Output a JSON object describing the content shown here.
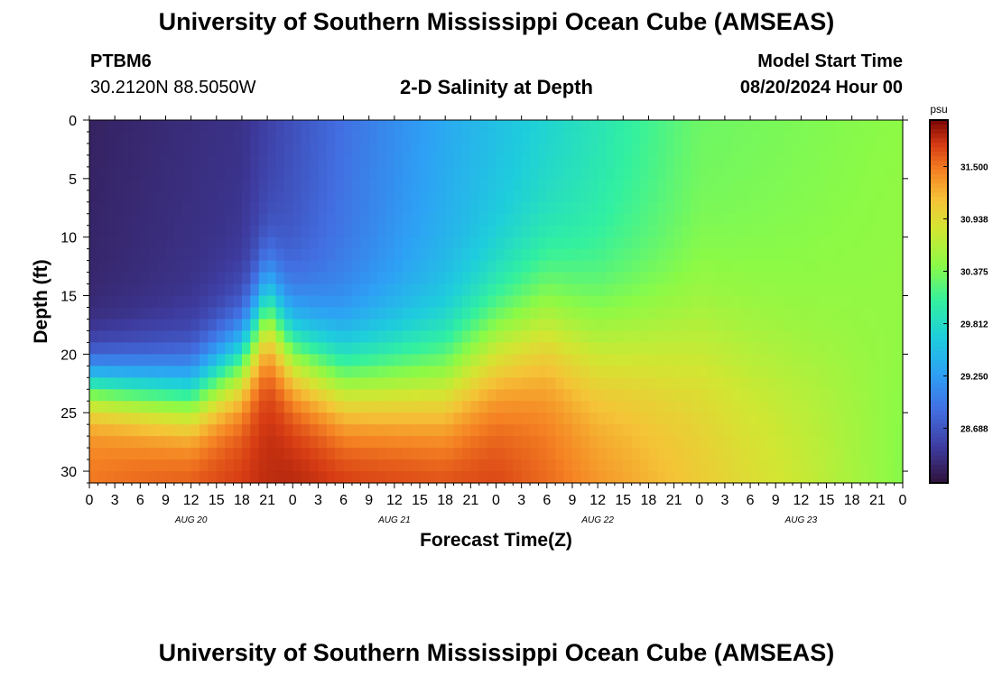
{
  "header": {
    "title": "University of Southern Mississippi Ocean Cube (AMSEAS)",
    "station_id": "PTBM6",
    "coordinates": "30.2120N  88.5050W",
    "subtitle": "2-D Salinity at Depth",
    "model_start_label": "Model Start Time",
    "model_start_value": "08/20/2024 Hour 00"
  },
  "footer": {
    "title": "University of Southern Mississippi Ocean Cube (AMSEAS)"
  },
  "chart_data": {
    "type": "heatmap",
    "title": "2-D Salinity at Depth",
    "xlabel": "Forecast Time(Z)",
    "ylabel": "Depth (ft)",
    "x_range_hours": [
      0,
      96
    ],
    "y_range_ft": [
      0,
      31
    ],
    "x_tick_labels": [
      "0",
      "3",
      "6",
      "9",
      "12",
      "15",
      "18",
      "21",
      "0",
      "3",
      "6",
      "9",
      "12",
      "15",
      "18",
      "21",
      "0",
      "3",
      "6",
      "9",
      "12",
      "15",
      "18",
      "21",
      "0",
      "3",
      "6",
      "9",
      "12",
      "15",
      "18",
      "21",
      "0"
    ],
    "day_labels": [
      {
        "label": "AUG 20",
        "hour": 12
      },
      {
        "label": "AUG 21",
        "hour": 36
      },
      {
        "label": "AUG 22",
        "hour": 60
      },
      {
        "label": "AUG 23",
        "hour": 84
      }
    ],
    "y_ticks": [
      0,
      5,
      10,
      15,
      20,
      25,
      30
    ],
    "colorbar": {
      "unit": "psu",
      "range": [
        28.1,
        32.0
      ],
      "tick_values": [
        28.688,
        29.25,
        29.812,
        30.375,
        30.938,
        31.5
      ],
      "tick_labels": [
        "28.688",
        "29.250",
        "29.812",
        "30.375",
        "30.938",
        "31.500"
      ]
    },
    "halocline_depth_ft": [
      {
        "hour": 0,
        "depth": 22.5
      },
      {
        "hour": 12,
        "depth": 23.5
      },
      {
        "hour": 18,
        "depth": 20.5
      },
      {
        "hour": 21,
        "depth": 16.0
      },
      {
        "hour": 24,
        "depth": 19.5
      },
      {
        "hour": 30,
        "depth": 22.0
      },
      {
        "hour": 42,
        "depth": 22.0
      },
      {
        "hour": 48,
        "depth": 19.0
      },
      {
        "hour": 54,
        "depth": 17.0
      },
      {
        "hour": 60,
        "depth": 19.0
      },
      {
        "hour": 72,
        "depth": 19.0
      },
      {
        "hour": 84,
        "depth": 21.0
      },
      {
        "hour": 96,
        "depth": 21.0
      }
    ],
    "surface_salinity_psu": [
      {
        "hour": 0,
        "value": 28.25
      },
      {
        "hour": 18,
        "value": 28.4
      },
      {
        "hour": 30,
        "value": 28.9
      },
      {
        "hour": 42,
        "value": 29.35
      },
      {
        "hour": 60,
        "value": 29.9
      },
      {
        "hour": 72,
        "value": 30.3
      },
      {
        "hour": 96,
        "value": 30.45
      }
    ],
    "bottom_salinity_psu": [
      {
        "hour": 0,
        "value": 31.5
      },
      {
        "hour": 24,
        "value": 31.85
      },
      {
        "hour": 48,
        "value": 31.75
      },
      {
        "hour": 72,
        "value": 31.1
      },
      {
        "hour": 84,
        "value": 30.8
      },
      {
        "hour": 96,
        "value": 30.4
      }
    ]
  }
}
